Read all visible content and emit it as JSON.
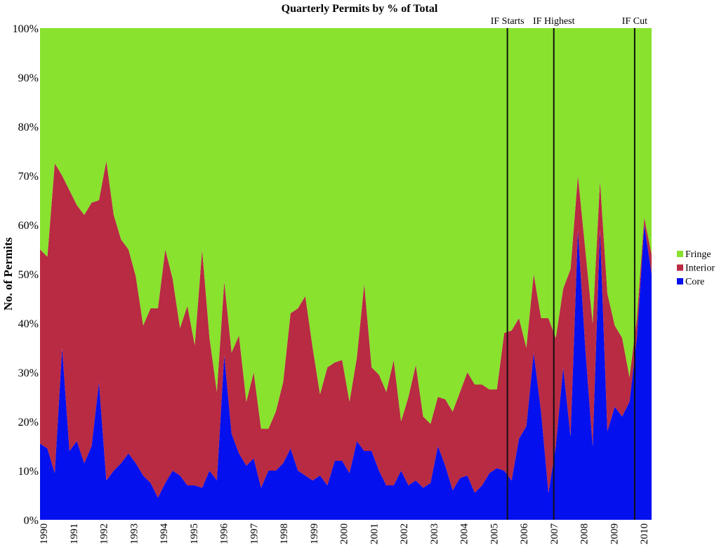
{
  "chart_data": {
    "type": "area",
    "stacked_percent": true,
    "title": "Quarterly Permits by % of Total",
    "xlabel": "",
    "ylabel": "No. of Permits",
    "ylim": [
      0,
      100
    ],
    "y_ticks": [
      "0%",
      "10%",
      "20%",
      "30%",
      "40%",
      "50%",
      "60%",
      "70%",
      "80%",
      "90%",
      "100%"
    ],
    "x_ticks": [
      "1990",
      "1991",
      "1992",
      "1993",
      "1994",
      "1995",
      "1996",
      "1997",
      "1998",
      "1999",
      "2000",
      "2001",
      "2002",
      "2003",
      "2004",
      "2005",
      "2006",
      "2007",
      "2008",
      "2009",
      "2010"
    ],
    "x_start": 1990,
    "x_step": 0.25,
    "grid": false,
    "legend_position": "right",
    "series": [
      {
        "name": "Core",
        "color": "#0510ee",
        "values": [
          15.5,
          14.5,
          9.5,
          35,
          14,
          16,
          11.5,
          15,
          28,
          8,
          10,
          11.5,
          13.5,
          11.5,
          9,
          7.5,
          4.5,
          7.5,
          10,
          9,
          7,
          7,
          6.5,
          10,
          8,
          33.5,
          17.5,
          13.5,
          11,
          12.5,
          6.5,
          10,
          10,
          11.5,
          14.5,
          10,
          9,
          8,
          9,
          7,
          12,
          12,
          9.5,
          16,
          14,
          14,
          10,
          7,
          7,
          10,
          7,
          8,
          6.5,
          7.5,
          15,
          11,
          6,
          8.5,
          9,
          5.5,
          7,
          9.5,
          10.5,
          10,
          8,
          16.5,
          19,
          34,
          22,
          5.5,
          15,
          31,
          17,
          59,
          35,
          15,
          59,
          18,
          23,
          21,
          24,
          37,
          60,
          50
        ]
      },
      {
        "name": "Interior",
        "color": "#b92a43",
        "values": [
          39.5,
          39,
          63,
          35,
          53,
          48,
          50.5,
          49.5,
          37,
          65,
          52,
          45.5,
          41.5,
          38,
          30.5,
          35.5,
          38.5,
          47.5,
          39,
          30,
          36.5,
          28.5,
          48.5,
          27,
          18,
          15,
          16.5,
          24,
          13,
          17.5,
          12,
          8.5,
          12,
          16.5,
          27.5,
          33,
          36.5,
          27,
          16.5,
          24,
          20,
          20.5,
          14.5,
          17,
          34,
          17,
          19.5,
          19,
          25.5,
          10,
          18,
          23.5,
          14.5,
          12,
          10,
          13.5,
          16,
          17.5,
          21,
          22,
          20.5,
          17,
          16,
          28,
          30.5,
          24.5,
          16,
          16,
          19,
          35.5,
          22,
          16,
          34,
          11,
          20,
          25,
          10,
          28,
          16.5,
          16,
          5,
          4,
          1.5,
          4
        ]
      },
      {
        "name": "Fringe",
        "color": "#88e22e",
        "values": [
          45,
          46.5,
          27.5,
          30,
          33,
          36,
          38,
          35.5,
          35,
          27,
          38,
          43,
          45,
          50.5,
          60.5,
          57,
          57,
          45,
          51,
          61,
          56.5,
          64.5,
          45,
          63,
          74,
          51.5,
          66,
          62.5,
          76,
          70,
          81.5,
          81.5,
          78,
          72,
          58,
          57,
          54.5,
          65,
          74.5,
          69,
          68,
          67.5,
          76,
          67,
          52,
          69,
          70.5,
          74,
          67.5,
          80,
          75,
          68.5,
          79,
          80.5,
          75,
          75.5,
          78,
          74,
          70,
          72.5,
          72.5,
          73.5,
          73.5,
          62,
          61.5,
          59,
          65,
          50,
          59,
          59,
          63,
          53,
          49,
          30,
          45,
          60,
          31,
          54,
          60.5,
          63,
          71,
          59,
          38.5,
          46
        ]
      }
    ],
    "annotations": [
      {
        "label": "IF Starts",
        "x": 2005.5
      },
      {
        "label": "IF Highest",
        "x": 2007.0
      },
      {
        "label": "IF Cut",
        "x": 2009.6
      }
    ],
    "legend": [
      "Fringe",
      "Interior",
      "Core"
    ]
  }
}
